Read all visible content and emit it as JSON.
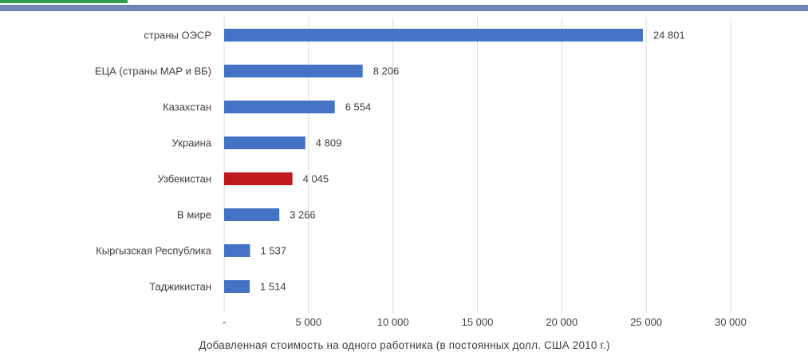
{
  "chart_data": {
    "type": "bar",
    "orientation": "horizontal",
    "categories": [
      "страны ОЭСР",
      "ЕЦА (страны МАР и ВБ)",
      "Казахстан",
      "Украина",
      "Узбекистан",
      "В мире",
      "Кыргызская Республика",
      "Таджикистан"
    ],
    "values": [
      24801,
      8206,
      6554,
      4809,
      4045,
      3266,
      1537,
      1514
    ],
    "value_labels": [
      "24 801",
      "8 206",
      "6 554",
      "4 809",
      "4 045",
      "3 266",
      "1 537",
      "1 514"
    ],
    "colors": [
      "#4472C4",
      "#4472C4",
      "#4472C4",
      "#4472C4",
      "#C0191E",
      "#4472C4",
      "#4472C4",
      "#4472C4"
    ],
    "xlim": [
      0,
      30000
    ],
    "x_ticks": [
      0,
      5000,
      10000,
      15000,
      20000,
      25000,
      30000
    ],
    "x_tick_labels": [
      "-",
      "5 000",
      "10 000",
      "15 000",
      "20 000",
      "25 000",
      "30 000"
    ],
    "xlabel": "Добавленная стоимость на одного работника (в постоянных долл. США 2010 г.)",
    "grid": true,
    "legend": false
  }
}
